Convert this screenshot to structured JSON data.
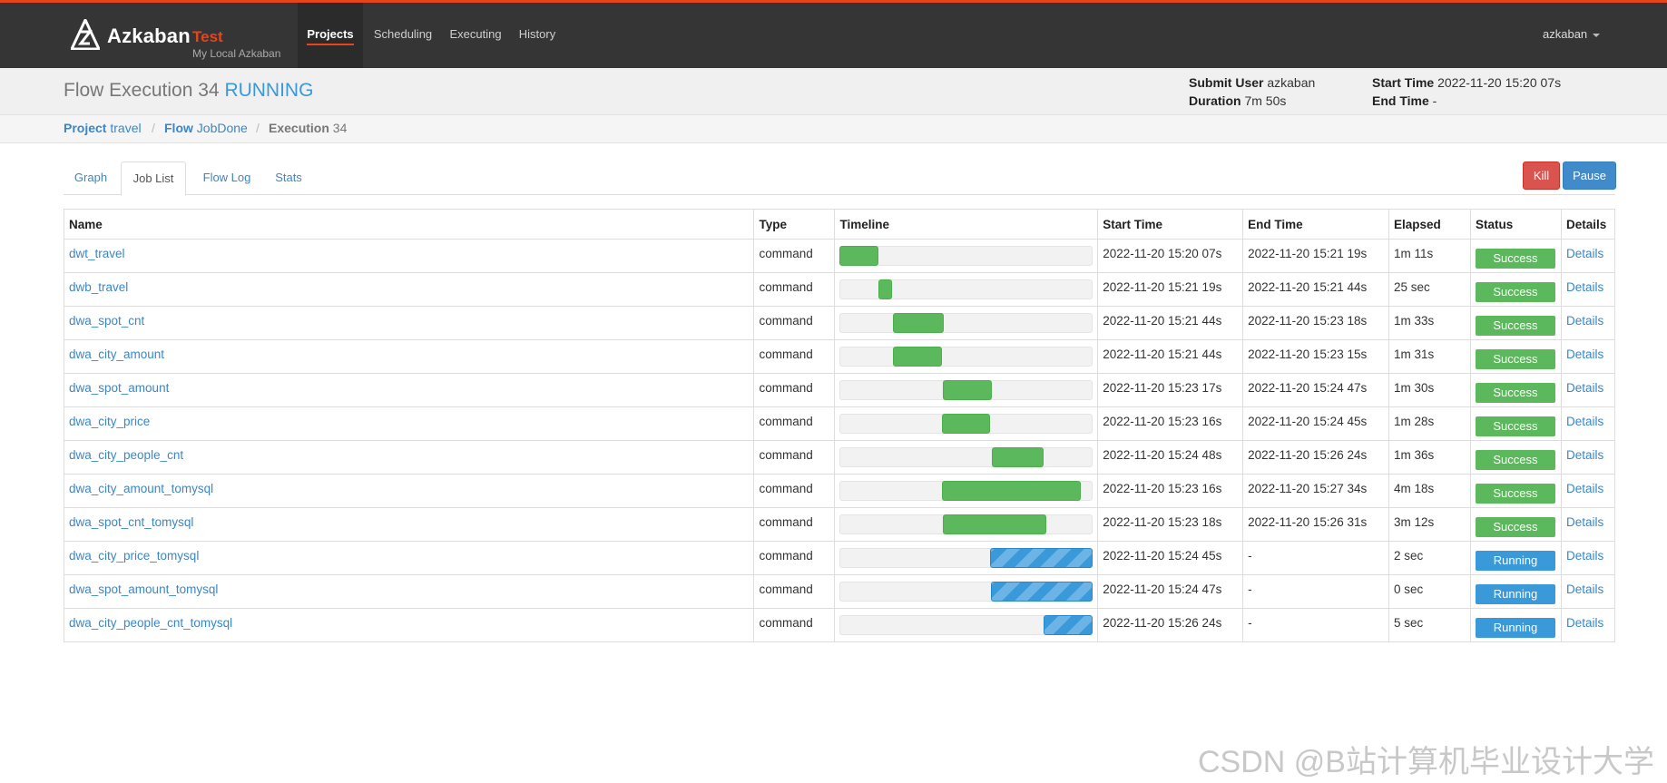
{
  "nav": {
    "brand": "Azkaban",
    "env": "Test",
    "subtitle": "My Local Azkaban",
    "items": [
      "Projects",
      "Scheduling",
      "Executing",
      "History"
    ],
    "active": "Projects",
    "user": "azkaban"
  },
  "header": {
    "title_prefix": "Flow Execution 34",
    "status": "RUNNING",
    "submit_user_label": "Submit User",
    "submit_user": "azkaban",
    "duration_label": "Duration",
    "duration": "7m 50s",
    "start_time_label": "Start Time",
    "start_time": "2022-11-20 15:20 07s",
    "end_time_label": "End Time",
    "end_time": "-"
  },
  "breadcrumb": {
    "project_label": "Project",
    "project": "travel",
    "flow_label": "Flow",
    "flow": "JobDone",
    "execution_label": "Execution",
    "execution": "34"
  },
  "tabs": [
    "Graph",
    "Job List",
    "Flow Log",
    "Stats"
  ],
  "active_tab": "Job List",
  "actions": {
    "kill": "Kill",
    "pause": "Pause"
  },
  "colors": {
    "success": "#5cb85c",
    "running": "#3a9ad9",
    "kill": "#d9534f",
    "pause": "#428bca",
    "accent": "#e8441c"
  },
  "table": {
    "columns": [
      "Name",
      "Type",
      "Timeline",
      "Start Time",
      "End Time",
      "Elapsed",
      "Status",
      "Details"
    ],
    "rows": [
      {
        "name": "dwt_travel",
        "type": "command",
        "start": "2022-11-20 15:20 07s",
        "end": "2022-11-20 15:21 19s",
        "elapsed": "1m 11s",
        "status": "Success",
        "details": "Details",
        "tl_start": 0.0,
        "tl_end": 0.155
      },
      {
        "name": "dwb_travel",
        "type": "command",
        "start": "2022-11-20 15:21 19s",
        "end": "2022-11-20 15:21 44s",
        "elapsed": "25 sec",
        "status": "Success",
        "details": "Details",
        "tl_start": 0.155,
        "tl_end": 0.21
      },
      {
        "name": "dwa_spot_cnt",
        "type": "command",
        "start": "2022-11-20 15:21 44s",
        "end": "2022-11-20 15:23 18s",
        "elapsed": "1m 33s",
        "status": "Success",
        "details": "Details",
        "tl_start": 0.21,
        "tl_end": 0.41
      },
      {
        "name": "dwa_city_amount",
        "type": "command",
        "start": "2022-11-20 15:21 44s",
        "end": "2022-11-20 15:23 15s",
        "elapsed": "1m 31s",
        "status": "Success",
        "details": "Details",
        "tl_start": 0.21,
        "tl_end": 0.404
      },
      {
        "name": "dwa_spot_amount",
        "type": "command",
        "start": "2022-11-20 15:23 17s",
        "end": "2022-11-20 15:24 47s",
        "elapsed": "1m 30s",
        "status": "Success",
        "details": "Details",
        "tl_start": 0.408,
        "tl_end": 0.6
      },
      {
        "name": "dwa_city_price",
        "type": "command",
        "start": "2022-11-20 15:23 16s",
        "end": "2022-11-20 15:24 45s",
        "elapsed": "1m 28s",
        "status": "Success",
        "details": "Details",
        "tl_start": 0.406,
        "tl_end": 0.595
      },
      {
        "name": "dwa_city_people_cnt",
        "type": "command",
        "start": "2022-11-20 15:24 48s",
        "end": "2022-11-20 15:26 24s",
        "elapsed": "1m 36s",
        "status": "Success",
        "details": "Details",
        "tl_start": 0.602,
        "tl_end": 0.807
      },
      {
        "name": "dwa_city_amount_tomysql",
        "type": "command",
        "start": "2022-11-20 15:23 16s",
        "end": "2022-11-20 15:27 34s",
        "elapsed": "4m 18s",
        "status": "Success",
        "details": "Details",
        "tl_start": 0.406,
        "tl_end": 0.956
      },
      {
        "name": "dwa_spot_cnt_tomysql",
        "type": "command",
        "start": "2022-11-20 15:23 18s",
        "end": "2022-11-20 15:26 31s",
        "elapsed": "3m 12s",
        "status": "Success",
        "details": "Details",
        "tl_start": 0.41,
        "tl_end": 0.82
      },
      {
        "name": "dwa_city_price_tomysql",
        "type": "command",
        "start": "2022-11-20 15:24 45s",
        "end": "-",
        "elapsed": "2 sec",
        "status": "Running",
        "details": "Details",
        "tl_start": 0.595,
        "tl_end": 1.0
      },
      {
        "name": "dwa_spot_amount_tomysql",
        "type": "command",
        "start": "2022-11-20 15:24 47s",
        "end": "-",
        "elapsed": "0 sec",
        "status": "Running",
        "details": "Details",
        "tl_start": 0.6,
        "tl_end": 1.0
      },
      {
        "name": "dwa_city_people_cnt_tomysql",
        "type": "command",
        "start": "2022-11-20 15:26 24s",
        "end": "-",
        "elapsed": "5 sec",
        "status": "Running",
        "details": "Details",
        "tl_start": 0.807,
        "tl_end": 1.0
      }
    ]
  },
  "watermark": "CSDN @B站计算机毕业设计大学"
}
